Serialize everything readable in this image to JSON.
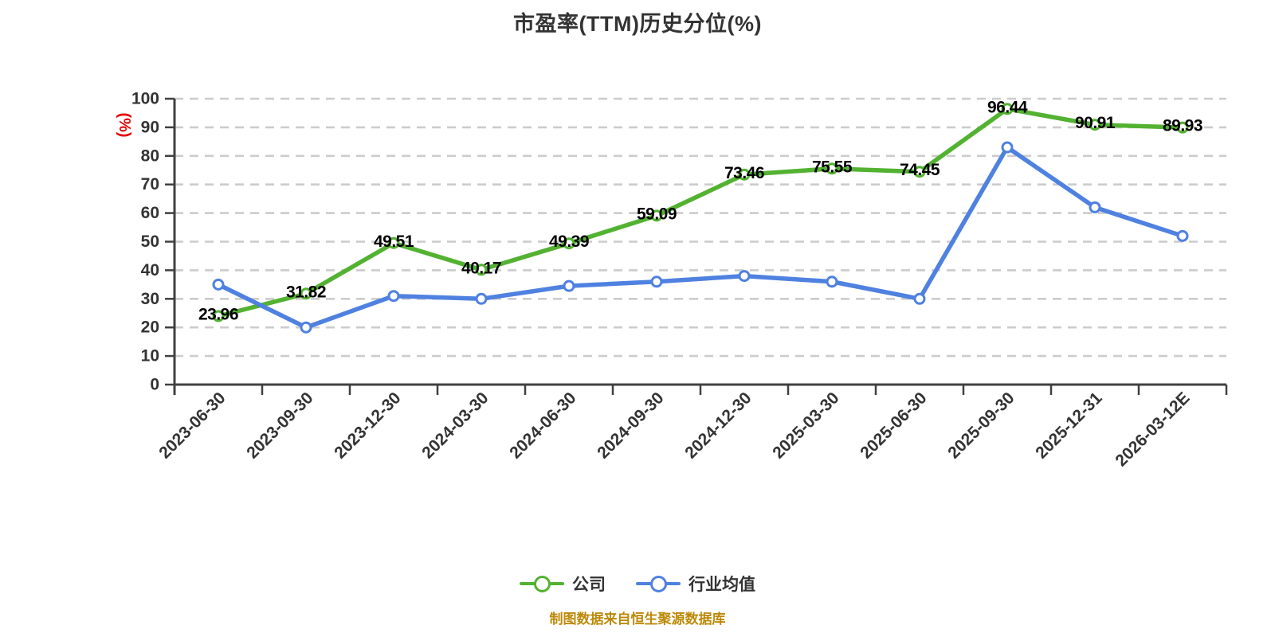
{
  "title": "市盈率(TTM)历史分位(%)",
  "footer": {
    "note": "制图数据来自恒生聚源数据库"
  },
  "colors": {
    "company_green": "#53b231",
    "industry_blue": "#4f81e0",
    "axis": "#404040",
    "grid": "#cccccc",
    "tick_label": "#333333",
    "data_label": "#000000",
    "y_unit_red": "#e60000",
    "title_text": "#333333",
    "footer_text": "#bc8908",
    "marker_fill": "#ffffff",
    "background": "#ffffff"
  },
  "chart_data": {
    "type": "line",
    "title": "市盈率(TTM)历史分位(%)",
    "xlabel": "",
    "ylabel": "(%)",
    "ylim": [
      0,
      100
    ],
    "yticks": [
      0,
      10,
      20,
      30,
      40,
      50,
      60,
      70,
      80,
      90,
      100
    ],
    "grid": "horizontal-dashed",
    "legend_position": "bottom",
    "categories": [
      "2023-06-30",
      "2023-09-30",
      "2023-12-30",
      "2024-03-30",
      "2024-06-30",
      "2024-09-30",
      "2024-12-30",
      "2025-03-30",
      "2025-06-30",
      "2025-09-30",
      "2025-12-31",
      "2026-03-12E"
    ],
    "series": [
      {
        "name": "公司",
        "color_key": "company_green",
        "labels_visible": true,
        "values": [
          23.96,
          31.82,
          49.51,
          40.17,
          49.39,
          59.09,
          73.46,
          75.55,
          74.45,
          96.44,
          90.91,
          89.93
        ]
      },
      {
        "name": "行业均值",
        "color_key": "industry_blue",
        "labels_visible": false,
        "values": [
          35,
          20,
          31,
          30,
          34.5,
          36,
          38,
          36,
          30,
          83,
          62,
          52
        ]
      }
    ]
  }
}
